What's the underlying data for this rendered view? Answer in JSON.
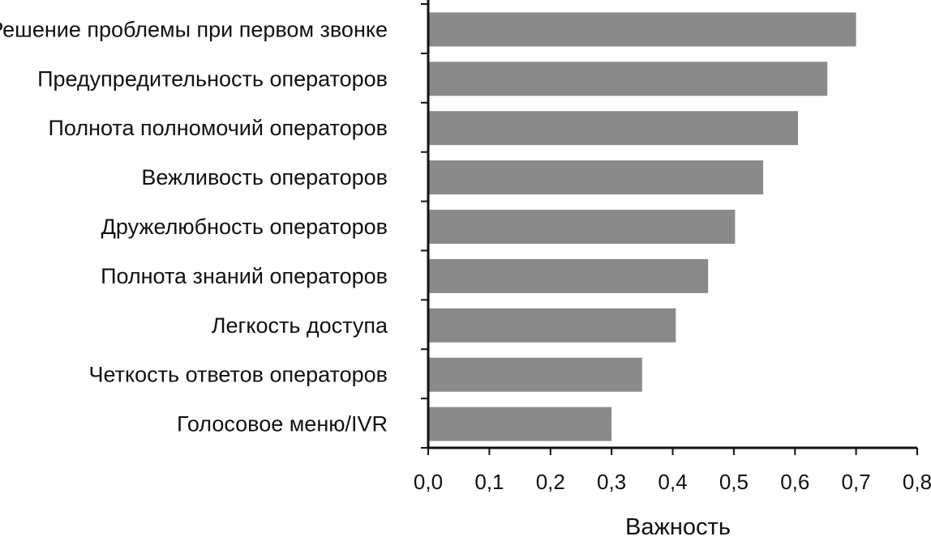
{
  "chart_data": {
    "type": "bar",
    "orientation": "horizontal",
    "title": "",
    "xlabel": "Важность",
    "ylabel": "",
    "categories": [
      "Решение проблемы при первом звонке",
      "Предупредительность операторов",
      "Полнота полномочий операторов",
      "Вежливость операторов",
      "Дружелюбность операторов",
      "Полнота знаний операторов",
      "Легкость доступа",
      "Четкость ответов операторов",
      "Голосовое меню/IVR"
    ],
    "values": [
      0.7,
      0.653,
      0.605,
      0.548,
      0.502,
      0.458,
      0.405,
      0.35,
      0.3
    ],
    "xlim": [
      0,
      0.8
    ],
    "xticks": [
      "0,0",
      "0,1",
      "0,2",
      "0,3",
      "0,4",
      "0,5",
      "0,6",
      "0,7",
      "0,8"
    ],
    "grid": false,
    "legend": "none",
    "bar_color": "#8a8a8a",
    "axis_color": "#111111"
  }
}
